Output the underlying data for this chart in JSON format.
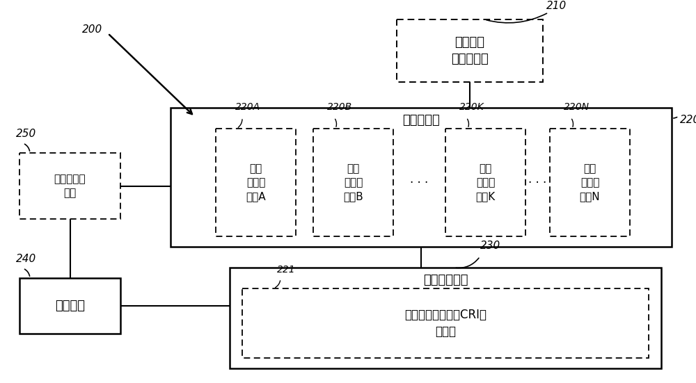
{
  "bg_color": "#ffffff",
  "box_210_text": "生理信号\n接收器电路",
  "box_220_label": "预测器总体",
  "box_220A_text": "部分\n预测器\n电路A",
  "box_220B_text": "部分\n预测器\n电路B",
  "box_220K_text": "部分\n预测器\n电路K",
  "box_220N_text": "部分\n预测器\n电路N",
  "box_230_label": "预测融合电路",
  "box_221_text": "合成风险指示符（CRI）\n计算器",
  "box_250_text": "指令接收器\n电路",
  "box_240_text": "控制电路",
  "label_200": "200",
  "label_210": "210",
  "label_220": "220",
  "label_220A": "220A",
  "label_220B": "220B",
  "label_220K": "220K",
  "label_220N": "220N",
  "label_221": "221",
  "label_230": "230",
  "label_240": "240",
  "label_250": "250"
}
